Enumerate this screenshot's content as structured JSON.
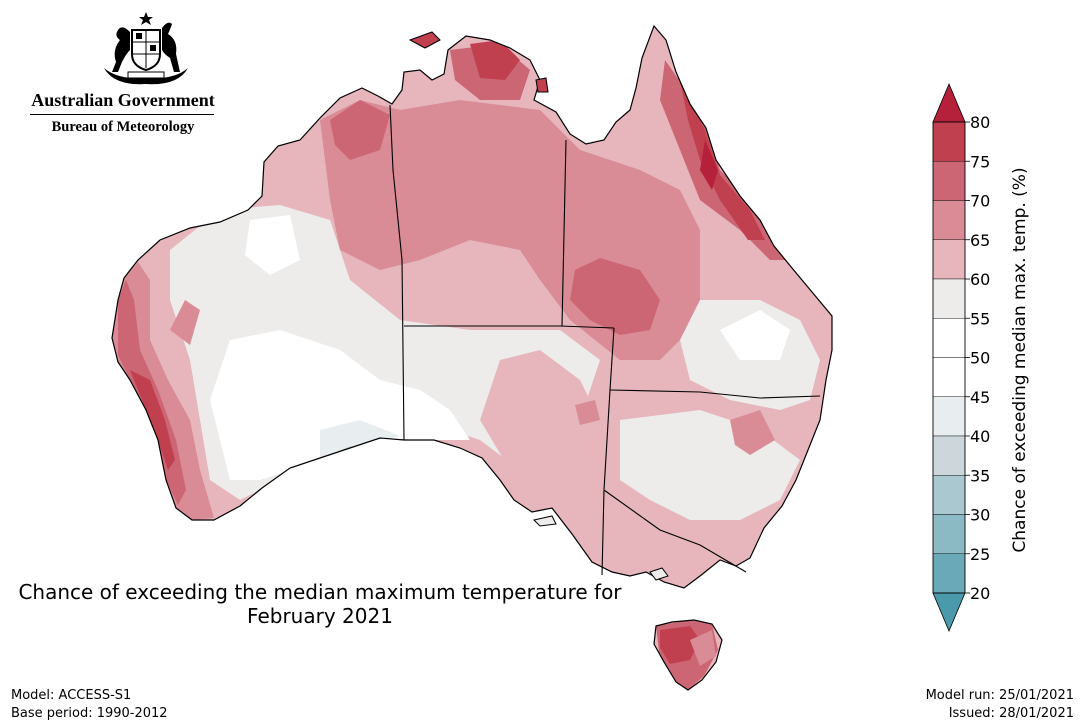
{
  "branding": {
    "government": "Australian Government",
    "bureau": "Bureau of Meteorology",
    "crest_icon": "coat-of-arms-icon"
  },
  "map": {
    "title_line1": "Chance of exceeding the median maximum temperature for",
    "title_line2": "February 2021",
    "region": "Australia",
    "states": [
      "WA",
      "NT",
      "SA",
      "QLD",
      "NSW",
      "VIC",
      "TAS"
    ]
  },
  "colorbar": {
    "label": "Chance of exceeding median max. temp. (%)",
    "ticks": [
      "80",
      "75",
      "70",
      "65",
      "60",
      "55",
      "50",
      "45",
      "40",
      "35",
      "30",
      "25",
      "20"
    ],
    "bins": [
      {
        "range": "75-80",
        "color": "#c0404f"
      },
      {
        "range": "70-75",
        "color": "#cc6674"
      },
      {
        "range": "65-70",
        "color": "#d98c96"
      },
      {
        "range": "60-65",
        "color": "#e6b6bc"
      },
      {
        "range": "55-60",
        "color": "#eeeceb"
      },
      {
        "range": "50-55",
        "color": "#ffffff"
      },
      {
        "range": "45-50",
        "color": "#ffffff"
      },
      {
        "range": "40-45",
        "color": "#e8eef0"
      },
      {
        "range": "35-40",
        "color": "#cdd6da"
      },
      {
        "range": "30-35",
        "color": "#a9c8cf"
      },
      {
        "range": "25-30",
        "color": "#8bb9c4"
      },
      {
        "range": "20-25",
        "color": "#6aa9b8"
      }
    ],
    "over_color": "#b5203a",
    "under_color": "#4a9aab"
  },
  "footer": {
    "model": "Model: ACCESS-S1",
    "base_period": "Base period: 1990-2012",
    "model_run": "Model run: 25/01/2021",
    "issued": "Issued: 28/01/2021"
  }
}
